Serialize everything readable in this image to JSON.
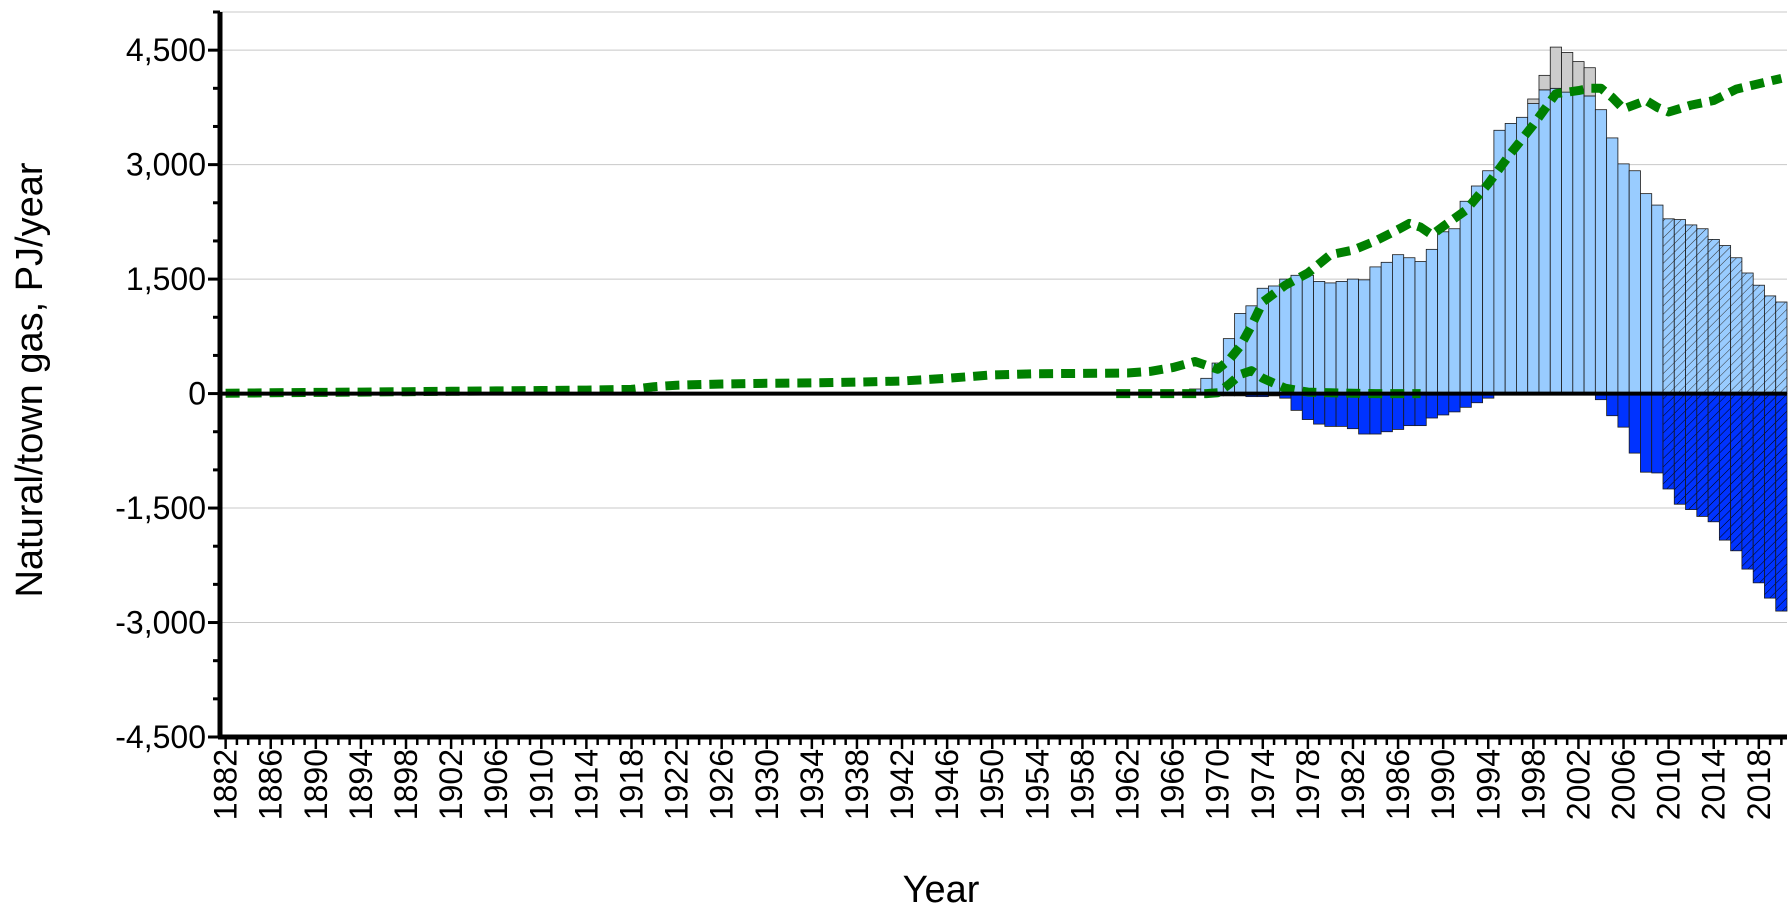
{
  "chart_data": {
    "type": "bar",
    "title": "",
    "xlabel": "Year",
    "ylabel": "Natural/town gas, PJ/year",
    "xlim": [
      1882,
      2020
    ],
    "ylim": [
      -4500,
      5000
    ],
    "yticks": [
      4500,
      3000,
      1500,
      0,
      -1500,
      -3000,
      -4500
    ],
    "ytick_labels": [
      "4,500",
      "3,000",
      "1,500",
      "0",
      "-1,500",
      "-3,000",
      "-4,500"
    ],
    "xtick_labels": [
      "1882",
      "1886",
      "1890",
      "1894",
      "1898",
      "1902",
      "1906",
      "1910",
      "1914",
      "1918",
      "1922",
      "1926",
      "1930",
      "1934",
      "1938",
      "1942",
      "1946",
      "1950",
      "1954",
      "1958",
      "1962",
      "1966",
      "1970",
      "1974",
      "1978",
      "1982",
      "1986",
      "1990",
      "1994",
      "1998",
      "2002",
      "2006",
      "2010",
      "2014",
      "2018"
    ],
    "grid": true,
    "legend": "none",
    "colors": {
      "production": "#99ccff",
      "production_other": "#cccccc",
      "net_exports": "#0033ff",
      "consumption": "#008000",
      "bar_edge": "#1a1a1a"
    },
    "hatched_from_year": 2010,
    "series": [
      {
        "key": "production",
        "x": [
          1966,
          1967,
          1968,
          1969,
          1970,
          1971,
          1972,
          1973,
          1974,
          1975,
          1976,
          1977,
          1978,
          1979,
          1980,
          1981,
          1982,
          1983,
          1984,
          1985,
          1986,
          1987,
          1988,
          1989,
          1990,
          1991,
          1992,
          1993,
          1994,
          1995,
          1996,
          1997,
          1998,
          1999,
          2000,
          2001,
          2002,
          2003,
          2004,
          2005,
          2006,
          2007,
          2008,
          2009,
          2010,
          2011,
          2012,
          2013,
          2014,
          2015,
          2016,
          2017,
          2018,
          2019,
          2020
        ],
        "values": [
          10,
          20,
          60,
          200,
          400,
          720,
          1050,
          1150,
          1380,
          1410,
          1500,
          1550,
          1550,
          1470,
          1450,
          1470,
          1500,
          1490,
          1660,
          1720,
          1820,
          1780,
          1730,
          1890,
          2120,
          2160,
          2520,
          2720,
          2920,
          3450,
          3540,
          3620,
          3800,
          3980,
          4000,
          3950,
          3950,
          3900,
          3720,
          3350,
          3010,
          2920,
          2620,
          2470,
          2290,
          2280,
          2210,
          2160,
          2020,
          1940,
          1780,
          1580,
          1420,
          1280,
          1200
        ]
      },
      {
        "key": "production_other",
        "x": [
          1998,
          1999,
          2000,
          2001,
          2002,
          2003
        ],
        "values": [
          60,
          190,
          540,
          520,
          400,
          370
        ]
      },
      {
        "key": "net_exports",
        "x": [
          1966,
          1967,
          1968,
          1969,
          1970,
          1971,
          1972,
          1973,
          1974,
          1975,
          1976,
          1977,
          1978,
          1979,
          1980,
          1981,
          1982,
          1983,
          1984,
          1985,
          1986,
          1987,
          1988,
          1989,
          1990,
          1991,
          1992,
          1993,
          1994,
          1995,
          1996,
          1997,
          1998,
          1999,
          2000,
          2001,
          2002,
          2003,
          2004,
          2005,
          2006,
          2007,
          2008,
          2009,
          2010,
          2011,
          2012,
          2013,
          2014,
          2015,
          2016,
          2017,
          2018,
          2019,
          2020
        ],
        "values": [
          0,
          0,
          -5,
          -20,
          -30,
          -30,
          -30,
          -40,
          -40,
          -30,
          -60,
          -220,
          -340,
          -400,
          -430,
          -430,
          -460,
          -530,
          -530,
          -500,
          -470,
          -420,
          -420,
          -320,
          -280,
          -240,
          -180,
          -120,
          -60,
          -10,
          0,
          0,
          0,
          0,
          0,
          0,
          0,
          -20,
          -80,
          -290,
          -440,
          -780,
          -1030,
          -1040,
          -1250,
          -1450,
          -1520,
          -1610,
          -1680,
          -1920,
          -2060,
          -2300,
          -2480,
          -2680,
          -2850
        ]
      },
      {
        "key": "consumption",
        "x": [
          1882,
          1886,
          1890,
          1894,
          1898,
          1902,
          1906,
          1910,
          1914,
          1918,
          1920,
          1922,
          1926,
          1930,
          1934,
          1938,
          1942,
          1946,
          1950,
          1954,
          1958,
          1962,
          1964,
          1966,
          1968,
          1970,
          1971,
          1972,
          1973,
          1974,
          1976,
          1978,
          1980,
          1982,
          1984,
          1986,
          1987,
          1988,
          1989,
          1990,
          1992,
          1994,
          1996,
          1998,
          2000,
          2002,
          2003,
          2004,
          2005,
          2006,
          2008,
          2009,
          2010,
          2012,
          2014,
          2016,
          2018,
          2020
        ],
        "values": [
          5,
          10,
          15,
          20,
          25,
          30,
          35,
          40,
          45,
          55,
          90,
          110,
          125,
          135,
          140,
          150,
          165,
          200,
          245,
          260,
          265,
          270,
          290,
          340,
          420,
          320,
          440,
          620,
          890,
          1200,
          1420,
          1580,
          1820,
          1880,
          2000,
          2150,
          2230,
          2180,
          2080,
          2190,
          2400,
          2750,
          3150,
          3520,
          3930,
          3970,
          4000,
          4000,
          3880,
          3730,
          3840,
          3750,
          3690,
          3780,
          3840,
          3990,
          4060,
          4130
        ]
      },
      {
        "key": "town_gas",
        "x": [
          1961,
          1962,
          1964,
          1966,
          1968,
          1969,
          1970,
          1971,
          1972,
          1973,
          1974,
          1976,
          1978,
          1980,
          1982,
          1984,
          1986,
          1988
        ],
        "values": [
          0,
          0,
          0,
          0,
          0,
          0,
          10,
          120,
          250,
          300,
          200,
          70,
          20,
          10,
          5,
          0,
          0,
          0
        ]
      }
    ]
  }
}
